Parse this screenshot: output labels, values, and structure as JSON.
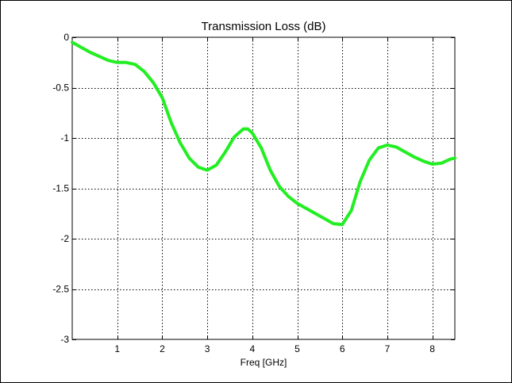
{
  "chart_data": {
    "type": "line",
    "title": "Transmission Loss (dB)",
    "xlabel": "Freq [GHz]",
    "ylabel": "",
    "xlim": [
      0,
      8.5
    ],
    "ylim": [
      -3,
      0
    ],
    "grid": true,
    "xticks": [
      1,
      2,
      3,
      4,
      5,
      6,
      7,
      8
    ],
    "xtick_labels": [
      "1",
      "2",
      "3",
      "4",
      "5",
      "6",
      "7",
      "8"
    ],
    "yticks": [
      0,
      -0.5,
      -1,
      -1.5,
      -2,
      -2.5,
      -3
    ],
    "ytick_labels": [
      "0",
      "-0.5",
      "-1",
      "-1.5",
      "-2",
      "-2.5",
      "-3"
    ],
    "colors": {
      "line": "#22ee22",
      "axes": "#000000",
      "background": "#ffffff"
    },
    "series": [
      {
        "x": [
          0.0,
          0.2,
          0.4,
          0.6,
          0.8,
          1.0,
          1.2,
          1.4,
          1.6,
          1.8,
          2.0,
          2.2,
          2.4,
          2.6,
          2.8,
          3.0,
          3.2,
          3.4,
          3.6,
          3.8,
          3.9,
          4.0,
          4.2,
          4.4,
          4.6,
          4.8,
          5.0,
          5.2,
          5.4,
          5.6,
          5.8,
          6.0,
          6.2,
          6.4,
          6.6,
          6.8,
          7.0,
          7.2,
          7.4,
          7.6,
          7.8,
          8.0,
          8.2,
          8.3,
          8.4,
          8.5
        ],
        "y": [
          -0.05,
          -0.1,
          -0.15,
          -0.19,
          -0.23,
          -0.25,
          -0.25,
          -0.27,
          -0.34,
          -0.45,
          -0.6,
          -0.85,
          -1.05,
          -1.2,
          -1.29,
          -1.32,
          -1.27,
          -1.14,
          -0.99,
          -0.91,
          -0.91,
          -0.95,
          -1.1,
          -1.32,
          -1.48,
          -1.58,
          -1.65,
          -1.7,
          -1.75,
          -1.8,
          -1.85,
          -1.86,
          -1.72,
          -1.43,
          -1.22,
          -1.1,
          -1.07,
          -1.09,
          -1.14,
          -1.19,
          -1.23,
          -1.26,
          -1.25,
          -1.23,
          -1.21,
          -1.2
        ]
      }
    ]
  }
}
